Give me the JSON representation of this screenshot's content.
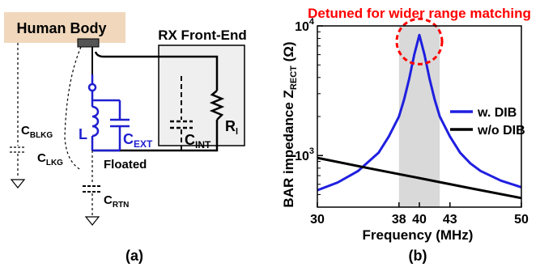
{
  "panel_a": {
    "human_body": "Human Body",
    "rx_frontend": "RX Front-End",
    "c_blkg": {
      "main": "C",
      "sub": "BLKG"
    },
    "c_lkg": {
      "main": "C",
      "sub": "LKG"
    },
    "c_rtn": {
      "main": "C",
      "sub": "RTN"
    },
    "inductor": "L",
    "c_ext": {
      "main": "C",
      "sub": "EXT"
    },
    "c_int": {
      "main": "C",
      "sub": "INT"
    },
    "r_l": {
      "main": "R",
      "sub": "l"
    },
    "floated": "Floated",
    "caption": "(a)",
    "colors": {
      "body_fill": "#f1d8bd",
      "frontend_fill": "#efefef",
      "ext_circuit": "#1f1fd0"
    }
  },
  "panel_b": {
    "annotation": "Detuned for wider range matching",
    "ylabel": {
      "main": "BAR impedance Z",
      "sub": "RECT",
      "unit": " (Ω)"
    },
    "xlabel": "Frequency (MHz)",
    "caption": "(b)",
    "colors": {
      "with_dib": "#1f1fe0",
      "without_dib": "#000000",
      "band": "#d9d9d9",
      "annotation": "#ff0000"
    }
  },
  "chart_data": {
    "type": "line",
    "xlabel": "Frequency (MHz)",
    "ylabel": "BAR impedance ZRECT (Ω)",
    "xlim": [
      30,
      50
    ],
    "ylim": [
      400,
      10000
    ],
    "yscale": "log",
    "x_ticks": [
      30,
      38,
      40,
      43,
      50
    ],
    "y_ticks": [
      {
        "value": 1000,
        "base": "10",
        "exp": "3"
      },
      {
        "value": 10000,
        "base": "10",
        "exp": "4"
      }
    ],
    "highlight_band": [
      38,
      42
    ],
    "peak_marker": {
      "x": 40,
      "y": 8500
    },
    "legend_position": "right",
    "series": [
      {
        "name": "w. DIB",
        "color": "#1f1fe0",
        "x": [
          30,
          32,
          34,
          36,
          37,
          38,
          38.5,
          39,
          39.5,
          40,
          40.5,
          41,
          41.5,
          42,
          43,
          44,
          45,
          46,
          48,
          50
        ],
        "y": [
          540,
          620,
          760,
          1050,
          1400,
          2000,
          2700,
          3900,
          6000,
          8500,
          6000,
          3900,
          2700,
          2000,
          1400,
          1050,
          870,
          760,
          640,
          570
        ]
      },
      {
        "name": "w/o DIB",
        "color": "#000000",
        "x": [
          30,
          35,
          40,
          45,
          50
        ],
        "y": [
          960,
          800,
          670,
          560,
          470
        ]
      }
    ]
  }
}
